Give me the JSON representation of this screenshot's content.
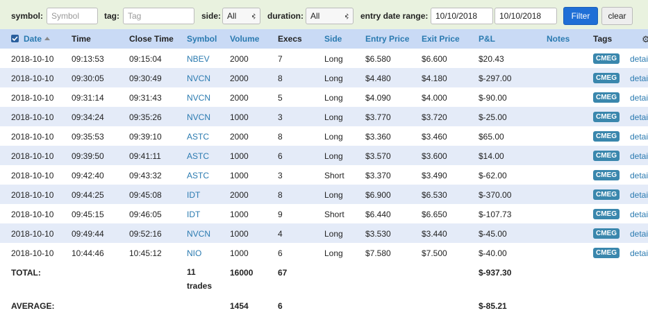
{
  "filters": {
    "symbol_label": "symbol:",
    "symbol_placeholder": "Symbol",
    "tag_label": "tag:",
    "tag_placeholder": "Tag",
    "side_label": "side:",
    "side_value": "All",
    "duration_label": "duration:",
    "duration_value": "All",
    "date_label": "entry date range:",
    "date_from": "10/10/2018",
    "date_to": "10/10/2018",
    "filter_button": "Filter",
    "clear_button": "clear"
  },
  "table": {
    "columns": [
      "Date",
      "Time",
      "Close Time",
      "Symbol",
      "Volume",
      "Execs",
      "Side",
      "Entry Price",
      "Exit Price",
      "P&L",
      "Notes",
      "Tags"
    ],
    "rows": [
      [
        "2018-10-10",
        "09:13:53",
        "09:15:04",
        "NBEV",
        "2000",
        "7",
        "Long",
        "$6.580",
        "$6.600",
        "$20.43",
        "CMEG",
        "details"
      ],
      [
        "2018-10-10",
        "09:30:05",
        "09:30:49",
        "NVCN",
        "2000",
        "8",
        "Long",
        "$4.480",
        "$4.180",
        "$-297.00",
        "CMEG",
        "details"
      ],
      [
        "2018-10-10",
        "09:31:14",
        "09:31:43",
        "NVCN",
        "2000",
        "5",
        "Long",
        "$4.090",
        "$4.000",
        "$-90.00",
        "CMEG",
        "details"
      ],
      [
        "2018-10-10",
        "09:34:24",
        "09:35:26",
        "NVCN",
        "1000",
        "3",
        "Long",
        "$3.770",
        "$3.720",
        "$-25.00",
        "CMEG",
        "details"
      ],
      [
        "2018-10-10",
        "09:35:53",
        "09:39:10",
        "ASTC",
        "2000",
        "8",
        "Long",
        "$3.360",
        "$3.460",
        "$65.00",
        "CMEG",
        "details"
      ],
      [
        "2018-10-10",
        "09:39:50",
        "09:41:11",
        "ASTC",
        "1000",
        "6",
        "Long",
        "$3.570",
        "$3.600",
        "$14.00",
        "CMEG",
        "details"
      ],
      [
        "2018-10-10",
        "09:42:40",
        "09:43:32",
        "ASTC",
        "1000",
        "3",
        "Short",
        "$3.370",
        "$3.490",
        "$-62.00",
        "CMEG",
        "details"
      ],
      [
        "2018-10-10",
        "09:44:25",
        "09:45:08",
        "IDT",
        "2000",
        "8",
        "Long",
        "$6.900",
        "$6.530",
        "$-370.00",
        "CMEG",
        "details"
      ],
      [
        "2018-10-10",
        "09:45:15",
        "09:46:05",
        "IDT",
        "1000",
        "9",
        "Short",
        "$6.440",
        "$6.650",
        "$-107.73",
        "CMEG",
        "details"
      ],
      [
        "2018-10-10",
        "09:49:44",
        "09:52:16",
        "NVCN",
        "1000",
        "4",
        "Long",
        "$3.530",
        "$3.440",
        "$-45.00",
        "CMEG",
        "details"
      ],
      [
        "2018-10-10",
        "10:44:46",
        "10:45:12",
        "NIO",
        "1000",
        "6",
        "Long",
        "$7.580",
        "$7.500",
        "$-40.00",
        "CMEG",
        "details"
      ]
    ],
    "total": {
      "label": "TOTAL:",
      "trades": "11 trades",
      "volume": "16000",
      "execs": "67",
      "pnl": "$-937.30"
    },
    "average": {
      "label": "AVERAGE:",
      "volume": "1454",
      "execs": "6",
      "pnl": "$-85.21"
    }
  }
}
